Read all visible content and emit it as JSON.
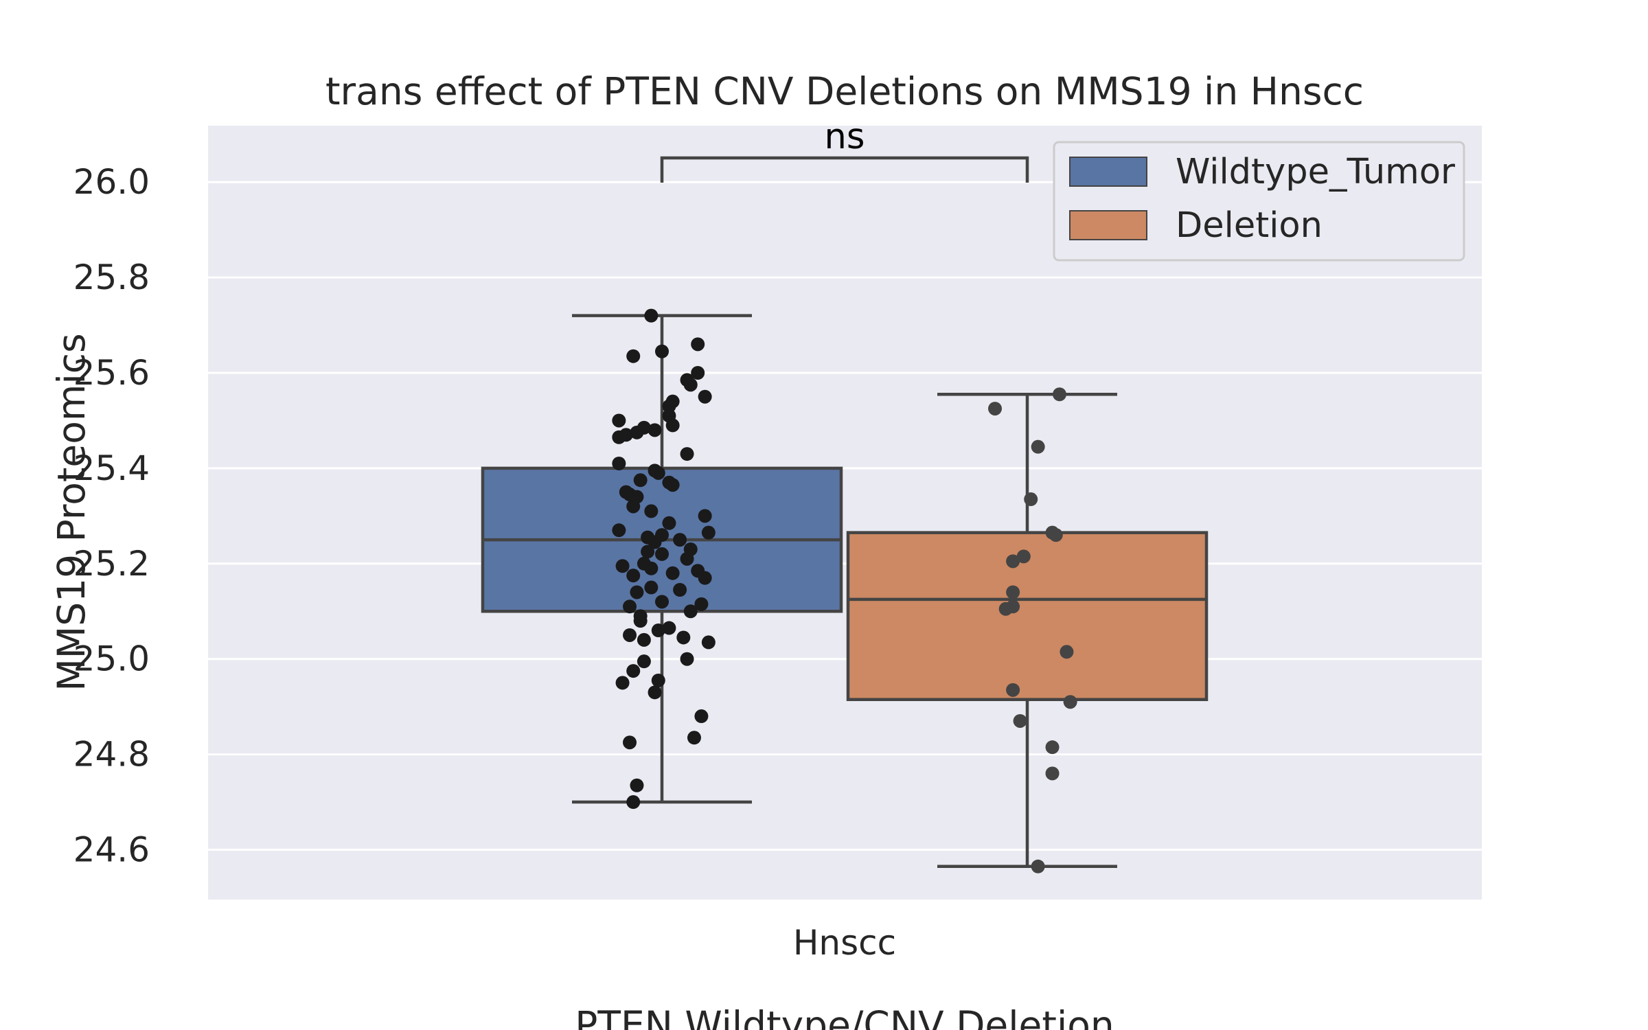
{
  "chart_data": {
    "type": "box",
    "title": "trans effect of PTEN CNV Deletions on MMS19 in Hnscc",
    "xlabel": "PTEN Wildtype/CNV Deletion",
    "ylabel": "MMS19 Proteomics",
    "categories": [
      "Hnscc"
    ],
    "ylim": [
      24.5,
      26.12
    ],
    "yticks": [
      "24.6",
      "24.8",
      "25.0",
      "25.2",
      "25.4",
      "25.6",
      "25.8",
      "26.0"
    ],
    "grid": true,
    "legend_position": "top-right",
    "annotation": "ns",
    "series": [
      {
        "name": "Wildtype_Tumor",
        "color": "#5975a4",
        "whisker_low": 24.7,
        "q1": 25.1,
        "median": 25.25,
        "q3": 25.4,
        "whisker_high": 25.72,
        "points": [
          25.72,
          25.66,
          25.645,
          25.635,
          25.6,
          25.585,
          25.575,
          25.55,
          25.54,
          25.53,
          25.51,
          25.5,
          25.49,
          25.485,
          25.48,
          25.475,
          25.47,
          25.465,
          25.43,
          25.41,
          25.395,
          25.39,
          25.375,
          25.37,
          25.365,
          25.35,
          25.345,
          25.34,
          25.32,
          25.31,
          25.3,
          25.285,
          25.27,
          25.265,
          25.26,
          25.255,
          25.25,
          25.245,
          25.23,
          25.225,
          25.22,
          25.21,
          25.2,
          25.195,
          25.19,
          25.185,
          25.18,
          25.175,
          25.17,
          25.15,
          25.145,
          25.14,
          25.12,
          25.115,
          25.11,
          25.1,
          25.09,
          25.08,
          25.065,
          25.06,
          25.05,
          25.045,
          25.04,
          25.035,
          25.0,
          24.995,
          24.975,
          24.955,
          24.95,
          24.93,
          24.88,
          24.835,
          24.825,
          24.735,
          24.7
        ],
        "jitter": [
          -0.03,
          0.1,
          0.0,
          -0.08,
          0.1,
          0.07,
          0.08,
          0.12,
          0.03,
          0.02,
          0.02,
          -0.12,
          0.03,
          -0.05,
          -0.02,
          -0.07,
          -0.1,
          -0.12,
          0.07,
          -0.12,
          -0.02,
          -0.01,
          -0.06,
          0.02,
          0.03,
          -0.1,
          -0.09,
          -0.07,
          -0.08,
          -0.03,
          0.12,
          0.02,
          -0.12,
          0.13,
          0.0,
          -0.04,
          0.05,
          -0.02,
          0.08,
          -0.04,
          0.0,
          0.07,
          -0.05,
          -0.11,
          -0.03,
          0.1,
          0.03,
          -0.08,
          0.12,
          -0.03,
          0.05,
          -0.07,
          0.0,
          0.11,
          -0.09,
          0.08,
          -0.06,
          -0.06,
          0.02,
          -0.01,
          -0.09,
          0.06,
          -0.05,
          0.13,
          0.07,
          -0.05,
          -0.08,
          -0.01,
          -0.11,
          -0.02,
          0.11,
          0.09,
          -0.09,
          -0.07,
          -0.08
        ]
      },
      {
        "name": "Deletion",
        "color": "#cc8963",
        "whisker_low": 24.565,
        "q1": 24.915,
        "median": 25.125,
        "q3": 25.265,
        "whisker_high": 25.555,
        "points": [
          25.555,
          25.525,
          25.445,
          25.335,
          25.265,
          25.26,
          25.215,
          25.205,
          25.14,
          25.11,
          25.105,
          25.015,
          24.935,
          24.91,
          24.87,
          24.815,
          24.76,
          24.565
        ],
        "jitter": [
          0.09,
          -0.09,
          0.03,
          0.01,
          0.07,
          0.08,
          -0.01,
          -0.04,
          -0.04,
          -0.04,
          -0.06,
          0.11,
          -0.04,
          0.12,
          -0.02,
          0.07,
          0.07,
          0.03
        ]
      }
    ]
  }
}
